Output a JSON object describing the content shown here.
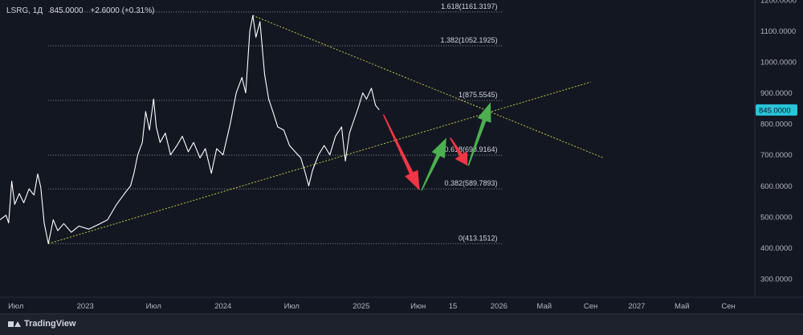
{
  "header": {
    "symbol": "LSRG, 1Д",
    "price": "845.0000",
    "change": "+2.6000 (+0.31%)"
  },
  "brand": {
    "name": "TradingView"
  },
  "colors": {
    "background": "#131722",
    "price_line": "#ffffff",
    "trend_line": "#c8c83c",
    "fib_line": "#8a8e99",
    "down_arrow": "#f23645",
    "up_arrow": "#4caf50",
    "price_badge": "#26c6da"
  },
  "chart_data": {
    "type": "line",
    "title": "LSRG, 1Д",
    "ylim": [
      240,
      1200
    ],
    "y_ticks": [
      {
        "value": 300,
        "label": "300.0000"
      },
      {
        "value": 400,
        "label": "400.0000"
      },
      {
        "value": 500,
        "label": "500.0000"
      },
      {
        "value": 600,
        "label": "600.0000"
      },
      {
        "value": 700,
        "label": "700.0000"
      },
      {
        "value": 800,
        "label": "800.0000"
      },
      {
        "value": 900,
        "label": "900.0000"
      },
      {
        "value": 1000,
        "label": "1000.0000"
      },
      {
        "value": 1100,
        "label": "1100.0000"
      },
      {
        "value": 1200,
        "label": "1200.0000"
      }
    ],
    "x_range": [
      "2022-05-20",
      "2027-11-10"
    ],
    "x_ticks": [
      {
        "date": "2022-07-01",
        "label": "Июл"
      },
      {
        "date": "2023-01-01",
        "label": "2023"
      },
      {
        "date": "2023-07-01",
        "label": "Июл"
      },
      {
        "date": "2024-01-01",
        "label": "2024"
      },
      {
        "date": "2024-07-01",
        "label": "Июл"
      },
      {
        "date": "2025-01-01",
        "label": "2025"
      },
      {
        "date": "2025-06-01",
        "label": "Июн"
      },
      {
        "date": "2025-09-01",
        "label": "15"
      },
      {
        "date": "2026-01-01",
        "label": "2026"
      },
      {
        "date": "2026-05-01",
        "label": "Май"
      },
      {
        "date": "2026-09-01",
        "label": "Сен"
      },
      {
        "date": "2027-01-01",
        "label": "2027"
      },
      {
        "date": "2027-05-01",
        "label": "Май"
      },
      {
        "date": "2027-09-01",
        "label": "Сен"
      }
    ],
    "series": [
      {
        "points": [
          [
            "2022-05-20",
            490
          ],
          [
            "2022-06-05",
            505
          ],
          [
            "2022-06-12",
            480
          ],
          [
            "2022-06-20",
            615
          ],
          [
            "2022-06-28",
            540
          ],
          [
            "2022-07-10",
            575
          ],
          [
            "2022-07-22",
            545
          ],
          [
            "2022-08-05",
            590
          ],
          [
            "2022-08-18",
            570
          ],
          [
            "2022-08-28",
            638
          ],
          [
            "2022-09-05",
            595
          ],
          [
            "2022-09-14",
            480
          ],
          [
            "2022-09-25",
            413
          ],
          [
            "2022-10-08",
            490
          ],
          [
            "2022-10-20",
            455
          ],
          [
            "2022-11-05",
            478
          ],
          [
            "2022-11-25",
            450
          ],
          [
            "2022-12-15",
            470
          ],
          [
            "2023-01-10",
            460
          ],
          [
            "2023-02-05",
            475
          ],
          [
            "2023-03-01",
            490
          ],
          [
            "2023-03-25",
            540
          ],
          [
            "2023-04-15",
            575
          ],
          [
            "2023-05-01",
            600
          ],
          [
            "2023-05-10",
            640
          ],
          [
            "2023-05-20",
            700
          ],
          [
            "2023-06-01",
            740
          ],
          [
            "2023-06-10",
            840
          ],
          [
            "2023-06-20",
            780
          ],
          [
            "2023-07-01",
            880
          ],
          [
            "2023-07-08",
            790
          ],
          [
            "2023-07-18",
            740
          ],
          [
            "2023-08-01",
            770
          ],
          [
            "2023-08-15",
            700
          ],
          [
            "2023-09-01",
            730
          ],
          [
            "2023-09-15",
            760
          ],
          [
            "2023-10-01",
            710
          ],
          [
            "2023-10-15",
            740
          ],
          [
            "2023-11-01",
            690
          ],
          [
            "2023-11-15",
            720
          ],
          [
            "2023-12-01",
            640
          ],
          [
            "2023-12-15",
            720
          ],
          [
            "2024-01-01",
            700
          ],
          [
            "2024-01-20",
            800
          ],
          [
            "2024-02-05",
            900
          ],
          [
            "2024-02-20",
            950
          ],
          [
            "2024-03-01",
            900
          ],
          [
            "2024-03-12",
            1100
          ],
          [
            "2024-03-20",
            1150
          ],
          [
            "2024-03-28",
            1080
          ],
          [
            "2024-04-08",
            1130
          ],
          [
            "2024-04-20",
            960
          ],
          [
            "2024-05-01",
            880
          ],
          [
            "2024-05-12",
            840
          ],
          [
            "2024-05-25",
            790
          ],
          [
            "2024-06-10",
            780
          ],
          [
            "2024-06-25",
            730
          ],
          [
            "2024-07-10",
            710
          ],
          [
            "2024-07-25",
            690
          ],
          [
            "2024-08-05",
            645
          ],
          [
            "2024-08-15",
            600
          ],
          [
            "2024-08-25",
            650
          ],
          [
            "2024-09-10",
            700
          ],
          [
            "2024-09-25",
            730
          ],
          [
            "2024-10-10",
            700
          ],
          [
            "2024-10-25",
            760
          ],
          [
            "2024-11-10",
            790
          ],
          [
            "2024-11-20",
            680
          ],
          [
            "2024-12-01",
            770
          ],
          [
            "2024-12-15",
            820
          ],
          [
            "2024-12-25",
            855
          ],
          [
            "2025-01-05",
            900
          ],
          [
            "2025-01-15",
            880
          ],
          [
            "2025-01-28",
            915
          ],
          [
            "2025-02-08",
            860
          ],
          [
            "2025-02-18",
            845
          ]
        ]
      }
    ],
    "trendlines": [
      {
        "from": [
          "2022-09-25",
          413
        ],
        "to": [
          "2026-09-01",
          935
        ]
      },
      {
        "from": [
          "2024-03-20",
          1150
        ],
        "to": [
          "2026-10-05",
          690
        ]
      }
    ],
    "fib_levels": [
      {
        "value": 1161.3197,
        "label": "1.618(1161.3197)"
      },
      {
        "value": 1052.1925,
        "label": "1.382(1052.1925)"
      },
      {
        "value": 875.5545,
        "label": "1(875.5545)"
      },
      {
        "value": 698.9164,
        "label": "0.618(698.9164)"
      },
      {
        "value": 589.7893,
        "label": "0.382(589.7893)"
      },
      {
        "value": 413.1512,
        "label": "0(413.1512)"
      }
    ],
    "fib_range": [
      "2022-09-25",
      "2026-01-10"
    ],
    "forecast_arrows": [
      {
        "direction": "down",
        "from": [
          "2025-03-01",
          830
        ],
        "to": [
          "2025-06-05",
          585
        ]
      },
      {
        "direction": "up",
        "from": [
          "2025-06-10",
          585
        ],
        "to": [
          "2025-08-15",
          755
        ]
      },
      {
        "direction": "down",
        "from": [
          "2025-08-25",
          755
        ],
        "to": [
          "2025-10-10",
          665
        ]
      },
      {
        "direction": "up",
        "from": [
          "2025-10-12",
          665
        ],
        "to": [
          "2025-12-10",
          870
        ]
      }
    ],
    "current_price": {
      "value": 845,
      "label": "845.0000"
    }
  }
}
